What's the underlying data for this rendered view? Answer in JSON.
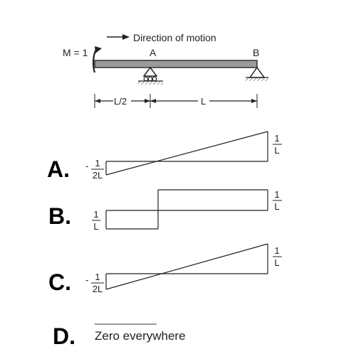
{
  "beam": {
    "direction_text": "Direction of motion",
    "moment_label": "M = 1",
    "support_a": "A",
    "support_b": "B",
    "dim_left": "L/2",
    "dim_right": "L"
  },
  "options": {
    "a": {
      "letter": "A.",
      "left_num": "1",
      "left_den": "2L",
      "left_sign": "-",
      "right_num": "1",
      "right_den": "L"
    },
    "b": {
      "letter": "B.",
      "left_num": "1",
      "left_den": "L",
      "right_num": "1",
      "right_den": "L"
    },
    "c": {
      "letter": "C.",
      "left_num": "1",
      "left_den": "2L",
      "left_sign": "-",
      "right_num": "1",
      "right_den": "L"
    },
    "d": {
      "letter": "D.",
      "text": "Zero everywhere"
    }
  }
}
